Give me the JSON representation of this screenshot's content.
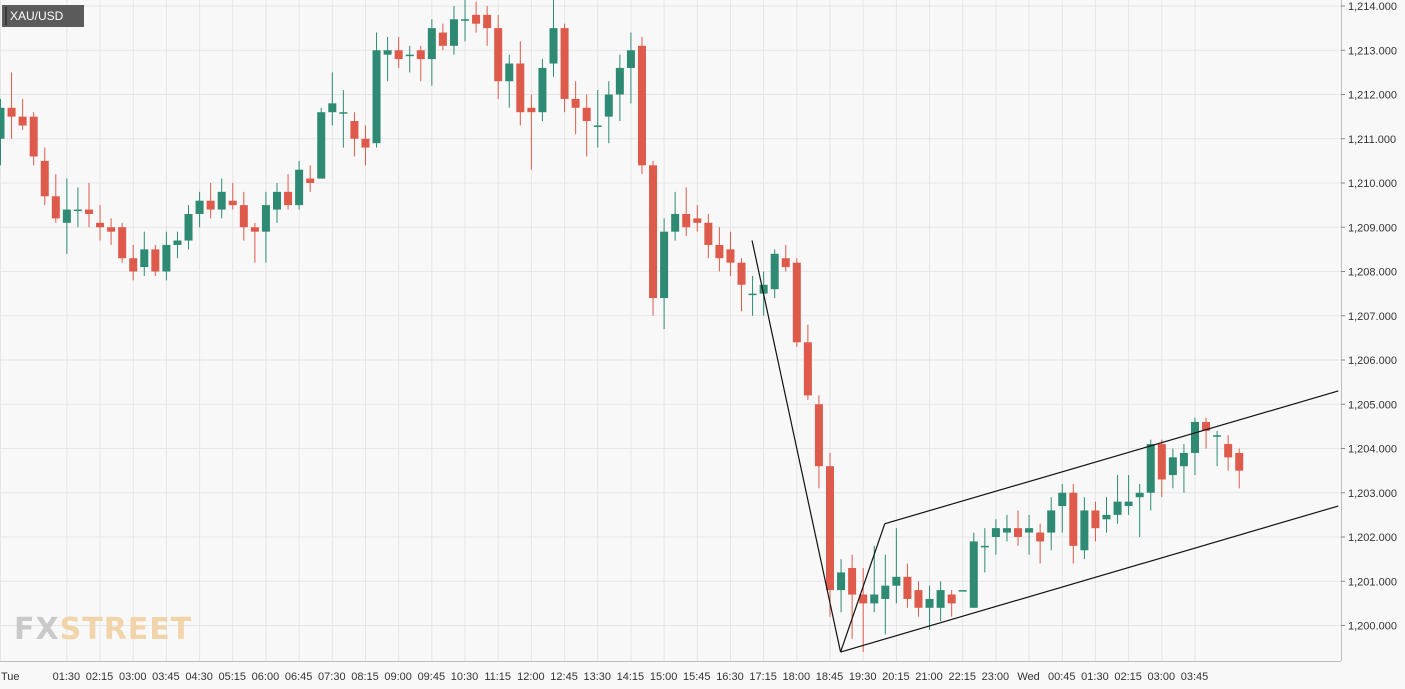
{
  "symbol": "XAU/USD",
  "logo": {
    "part1": "FX",
    "part2": "STREET"
  },
  "colors": {
    "up": "#2e8a73",
    "down": "#de5a4b",
    "grid": "#e6e6e6",
    "axis_text": "#333333",
    "trendline": "#111111"
  },
  "chart_data": {
    "type": "candlestick",
    "title": "",
    "xlabel": "",
    "ylabel": "",
    "ylim": [
      1199.3,
      1214.2
    ],
    "yticks": [
      1200,
      1201,
      1202,
      1203,
      1204,
      1205,
      1206,
      1207,
      1208,
      1209,
      1210,
      1211,
      1212,
      1213,
      1214
    ],
    "ytick_labels": [
      "1,200.000",
      "1,201.000",
      "1,202.000",
      "1,203.000",
      "1,204.000",
      "1,205.000",
      "1,206.000",
      "1,207.000",
      "1,208.000",
      "1,209.000",
      "1,210.000",
      "1,211.000",
      "1,212.000",
      "1,213.000",
      "1,214.000"
    ],
    "xticks": [
      {
        "label": "Tue",
        "i": 0
      },
      {
        "label": "01:30",
        "i": 6
      },
      {
        "label": "02:15",
        "i": 9
      },
      {
        "label": "03:00",
        "i": 12
      },
      {
        "label": "03:45",
        "i": 15
      },
      {
        "label": "04:30",
        "i": 18
      },
      {
        "label": "05:15",
        "i": 21
      },
      {
        "label": "06:00",
        "i": 24
      },
      {
        "label": "06:45",
        "i": 27
      },
      {
        "label": "07:30",
        "i": 30
      },
      {
        "label": "08:15",
        "i": 33
      },
      {
        "label": "09:00",
        "i": 36
      },
      {
        "label": "09:45",
        "i": 39
      },
      {
        "label": "10:30",
        "i": 42
      },
      {
        "label": "11:15",
        "i": 45
      },
      {
        "label": "12:00",
        "i": 48
      },
      {
        "label": "12:45",
        "i": 51
      },
      {
        "label": "13:30",
        "i": 54
      },
      {
        "label": "14:15",
        "i": 57
      },
      {
        "label": "15:00",
        "i": 60
      },
      {
        "label": "15:45",
        "i": 63
      },
      {
        "label": "16:30",
        "i": 66
      },
      {
        "label": "17:15",
        "i": 69
      },
      {
        "label": "18:00",
        "i": 72
      },
      {
        "label": "18:45",
        "i": 75
      },
      {
        "label": "19:30",
        "i": 78
      },
      {
        "label": "20:15",
        "i": 81
      },
      {
        "label": "21:00",
        "i": 84
      },
      {
        "label": "22:15",
        "i": 87
      },
      {
        "label": "23:00",
        "i": 90
      },
      {
        "label": "Wed",
        "i": 93
      },
      {
        "label": "00:45",
        "i": 96
      },
      {
        "label": "01:30",
        "i": 99
      },
      {
        "label": "02:15",
        "i": 102
      },
      {
        "label": "03:00",
        "i": 105
      },
      {
        "label": "03:45",
        "i": 108
      }
    ],
    "candles": [
      {
        "o": 1211.0,
        "h": 1211.9,
        "l": 1210.4,
        "c": 1211.7
      },
      {
        "o": 1211.7,
        "h": 1212.5,
        "l": 1211.0,
        "c": 1211.5
      },
      {
        "o": 1211.5,
        "h": 1211.9,
        "l": 1211.2,
        "c": 1211.3
      },
      {
        "o": 1211.5,
        "h": 1211.6,
        "l": 1210.4,
        "c": 1210.6
      },
      {
        "o": 1210.5,
        "h": 1210.8,
        "l": 1209.5,
        "c": 1209.7
      },
      {
        "o": 1209.7,
        "h": 1210.2,
        "l": 1209.1,
        "c": 1209.2
      },
      {
        "o": 1209.1,
        "h": 1210.1,
        "l": 1208.4,
        "c": 1209.4
      },
      {
        "o": 1209.4,
        "h": 1209.9,
        "l": 1209.0,
        "c": 1209.4
      },
      {
        "o": 1209.4,
        "h": 1210.0,
        "l": 1209.0,
        "c": 1209.3
      },
      {
        "o": 1209.1,
        "h": 1209.5,
        "l": 1208.7,
        "c": 1209.0
      },
      {
        "o": 1209.0,
        "h": 1209.2,
        "l": 1208.6,
        "c": 1208.9
      },
      {
        "o": 1209.0,
        "h": 1209.1,
        "l": 1208.2,
        "c": 1208.3
      },
      {
        "o": 1208.3,
        "h": 1208.6,
        "l": 1207.8,
        "c": 1208.0
      },
      {
        "o": 1208.1,
        "h": 1208.9,
        "l": 1207.9,
        "c": 1208.5
      },
      {
        "o": 1208.5,
        "h": 1208.6,
        "l": 1207.9,
        "c": 1208.0
      },
      {
        "o": 1208.0,
        "h": 1208.9,
        "l": 1207.8,
        "c": 1208.6
      },
      {
        "o": 1208.6,
        "h": 1208.9,
        "l": 1208.3,
        "c": 1208.7
      },
      {
        "o": 1208.7,
        "h": 1209.5,
        "l": 1208.5,
        "c": 1209.3
      },
      {
        "o": 1209.3,
        "h": 1209.8,
        "l": 1209.0,
        "c": 1209.6
      },
      {
        "o": 1209.6,
        "h": 1210.0,
        "l": 1209.2,
        "c": 1209.4
      },
      {
        "o": 1209.4,
        "h": 1210.1,
        "l": 1209.2,
        "c": 1209.8
      },
      {
        "o": 1209.6,
        "h": 1210.0,
        "l": 1209.4,
        "c": 1209.5
      },
      {
        "o": 1209.5,
        "h": 1209.8,
        "l": 1208.7,
        "c": 1209.0
      },
      {
        "o": 1209.0,
        "h": 1209.1,
        "l": 1208.2,
        "c": 1208.9
      },
      {
        "o": 1208.9,
        "h": 1209.8,
        "l": 1208.2,
        "c": 1209.5
      },
      {
        "o": 1209.4,
        "h": 1210.0,
        "l": 1209.1,
        "c": 1209.8
      },
      {
        "o": 1209.8,
        "h": 1210.2,
        "l": 1209.4,
        "c": 1209.5
      },
      {
        "o": 1209.5,
        "h": 1210.5,
        "l": 1209.4,
        "c": 1210.3
      },
      {
        "o": 1210.1,
        "h": 1210.4,
        "l": 1209.8,
        "c": 1210.0
      },
      {
        "o": 1210.1,
        "h": 1211.7,
        "l": 1210.1,
        "c": 1211.6
      },
      {
        "o": 1211.6,
        "h": 1212.5,
        "l": 1211.3,
        "c": 1211.8
      },
      {
        "o": 1211.6,
        "h": 1212.1,
        "l": 1210.8,
        "c": 1211.6
      },
      {
        "o": 1211.4,
        "h": 1211.6,
        "l": 1210.6,
        "c": 1211.0
      },
      {
        "o": 1211.0,
        "h": 1211.3,
        "l": 1210.4,
        "c": 1210.8
      },
      {
        "o": 1210.9,
        "h": 1213.4,
        "l": 1210.8,
        "c": 1213.0
      },
      {
        "o": 1212.9,
        "h": 1213.3,
        "l": 1212.3,
        "c": 1213.0
      },
      {
        "o": 1213.0,
        "h": 1213.3,
        "l": 1212.6,
        "c": 1212.8
      },
      {
        "o": 1212.9,
        "h": 1213.1,
        "l": 1212.5,
        "c": 1212.9
      },
      {
        "o": 1213.0,
        "h": 1213.1,
        "l": 1212.3,
        "c": 1212.8
      },
      {
        "o": 1212.8,
        "h": 1213.7,
        "l": 1212.2,
        "c": 1213.5
      },
      {
        "o": 1213.4,
        "h": 1213.6,
        "l": 1213.0,
        "c": 1213.1
      },
      {
        "o": 1213.1,
        "h": 1214.0,
        "l": 1212.9,
        "c": 1213.7
      },
      {
        "o": 1213.7,
        "h": 1214.2,
        "l": 1213.2,
        "c": 1213.7
      },
      {
        "o": 1213.8,
        "h": 1214.1,
        "l": 1213.4,
        "c": 1213.6
      },
      {
        "o": 1213.8,
        "h": 1214.0,
        "l": 1213.1,
        "c": 1213.5
      },
      {
        "o": 1213.5,
        "h": 1213.8,
        "l": 1211.9,
        "c": 1212.3
      },
      {
        "o": 1212.3,
        "h": 1212.9,
        "l": 1211.7,
        "c": 1212.7
      },
      {
        "o": 1212.7,
        "h": 1213.2,
        "l": 1211.3,
        "c": 1211.6
      },
      {
        "o": 1211.7,
        "h": 1212.0,
        "l": 1210.3,
        "c": 1211.6
      },
      {
        "o": 1211.6,
        "h": 1212.8,
        "l": 1211.4,
        "c": 1212.6
      },
      {
        "o": 1212.7,
        "h": 1214.2,
        "l": 1212.4,
        "c": 1213.5
      },
      {
        "o": 1213.5,
        "h": 1213.6,
        "l": 1211.6,
        "c": 1211.9
      },
      {
        "o": 1211.9,
        "h": 1212.3,
        "l": 1211.1,
        "c": 1211.7
      },
      {
        "o": 1211.7,
        "h": 1212.0,
        "l": 1210.6,
        "c": 1211.4
      },
      {
        "o": 1211.3,
        "h": 1212.1,
        "l": 1210.8,
        "c": 1211.3
      },
      {
        "o": 1211.5,
        "h": 1212.3,
        "l": 1210.9,
        "c": 1212.0
      },
      {
        "o": 1212.0,
        "h": 1212.9,
        "l": 1211.4,
        "c": 1212.6
      },
      {
        "o": 1212.6,
        "h": 1213.4,
        "l": 1211.8,
        "c": 1213.0
      },
      {
        "o": 1213.1,
        "h": 1213.3,
        "l": 1210.2,
        "c": 1210.4
      },
      {
        "o": 1210.4,
        "h": 1210.5,
        "l": 1207.0,
        "c": 1207.4
      },
      {
        "o": 1207.4,
        "h": 1209.2,
        "l": 1206.7,
        "c": 1208.9
      },
      {
        "o": 1208.9,
        "h": 1209.8,
        "l": 1208.7,
        "c": 1209.3
      },
      {
        "o": 1209.3,
        "h": 1209.9,
        "l": 1208.8,
        "c": 1209.0
      },
      {
        "o": 1209.2,
        "h": 1209.5,
        "l": 1208.9,
        "c": 1209.1
      },
      {
        "o": 1209.1,
        "h": 1209.3,
        "l": 1208.3,
        "c": 1208.6
      },
      {
        "o": 1208.6,
        "h": 1209.0,
        "l": 1208.0,
        "c": 1208.3
      },
      {
        "o": 1208.5,
        "h": 1208.9,
        "l": 1207.9,
        "c": 1208.2
      },
      {
        "o": 1208.2,
        "h": 1208.3,
        "l": 1207.1,
        "c": 1207.7
      },
      {
        "o": 1207.5,
        "h": 1207.9,
        "l": 1207.0,
        "c": 1207.5
      },
      {
        "o": 1207.5,
        "h": 1208.0,
        "l": 1207.0,
        "c": 1207.7
      },
      {
        "o": 1207.6,
        "h": 1208.5,
        "l": 1207.4,
        "c": 1208.4
      },
      {
        "o": 1208.3,
        "h": 1208.6,
        "l": 1208.0,
        "c": 1208.1
      },
      {
        "o": 1208.2,
        "h": 1208.3,
        "l": 1206.3,
        "c": 1206.4
      },
      {
        "o": 1206.4,
        "h": 1206.8,
        "l": 1205.1,
        "c": 1205.2
      },
      {
        "o": 1205.0,
        "h": 1205.2,
        "l": 1203.1,
        "c": 1203.6
      },
      {
        "o": 1203.6,
        "h": 1203.9,
        "l": 1200.2,
        "c": 1200.8
      },
      {
        "o": 1200.8,
        "h": 1201.5,
        "l": 1200.3,
        "c": 1201.2
      },
      {
        "o": 1201.3,
        "h": 1201.6,
        "l": 1199.7,
        "c": 1200.7
      },
      {
        "o": 1200.7,
        "h": 1201.3,
        "l": 1199.4,
        "c": 1200.5
      },
      {
        "o": 1200.5,
        "h": 1201.8,
        "l": 1200.3,
        "c": 1200.7
      },
      {
        "o": 1200.6,
        "h": 1201.6,
        "l": 1199.8,
        "c": 1200.9
      },
      {
        "o": 1200.9,
        "h": 1202.2,
        "l": 1200.5,
        "c": 1201.1
      },
      {
        "o": 1201.1,
        "h": 1201.4,
        "l": 1200.4,
        "c": 1200.6
      },
      {
        "o": 1200.8,
        "h": 1201.0,
        "l": 1200.2,
        "c": 1200.4
      },
      {
        "o": 1200.4,
        "h": 1200.9,
        "l": 1199.9,
        "c": 1200.6
      },
      {
        "o": 1200.4,
        "h": 1201.0,
        "l": 1200.1,
        "c": 1200.8
      },
      {
        "o": 1200.7,
        "h": 1200.8,
        "l": 1200.2,
        "c": 1200.5
      },
      {
        "o": 1200.8,
        "h": 1200.8,
        "l": 1200.8,
        "c": 1200.8
      },
      {
        "o": 1200.4,
        "h": 1202.1,
        "l": 1200.4,
        "c": 1201.9
      },
      {
        "o": 1201.8,
        "h": 1202.2,
        "l": 1201.2,
        "c": 1201.8
      },
      {
        "o": 1202.0,
        "h": 1202.4,
        "l": 1201.6,
        "c": 1202.2
      },
      {
        "o": 1202.1,
        "h": 1202.5,
        "l": 1201.9,
        "c": 1202.2
      },
      {
        "o": 1202.2,
        "h": 1202.6,
        "l": 1201.8,
        "c": 1202.0
      },
      {
        "o": 1202.1,
        "h": 1202.5,
        "l": 1201.6,
        "c": 1202.2
      },
      {
        "o": 1202.1,
        "h": 1202.3,
        "l": 1201.4,
        "c": 1201.9
      },
      {
        "o": 1202.1,
        "h": 1202.9,
        "l": 1201.7,
        "c": 1202.6
      },
      {
        "o": 1202.7,
        "h": 1203.2,
        "l": 1202.1,
        "c": 1203.0
      },
      {
        "o": 1203.0,
        "h": 1203.2,
        "l": 1201.4,
        "c": 1201.8
      },
      {
        "o": 1201.7,
        "h": 1202.9,
        "l": 1201.5,
        "c": 1202.6
      },
      {
        "o": 1202.6,
        "h": 1202.8,
        "l": 1201.9,
        "c": 1202.2
      },
      {
        "o": 1202.4,
        "h": 1202.9,
        "l": 1202.1,
        "c": 1202.5
      },
      {
        "o": 1202.5,
        "h": 1203.4,
        "l": 1202.3,
        "c": 1202.8
      },
      {
        "o": 1202.7,
        "h": 1203.4,
        "l": 1202.5,
        "c": 1202.8
      },
      {
        "o": 1202.9,
        "h": 1203.2,
        "l": 1202.0,
        "c": 1203.0
      },
      {
        "o": 1203.0,
        "h": 1204.2,
        "l": 1202.6,
        "c": 1204.1
      },
      {
        "o": 1204.1,
        "h": 1204.2,
        "l": 1202.9,
        "c": 1203.3
      },
      {
        "o": 1203.4,
        "h": 1204.0,
        "l": 1203.1,
        "c": 1203.8
      },
      {
        "o": 1203.6,
        "h": 1204.1,
        "l": 1203.0,
        "c": 1203.9
      },
      {
        "o": 1203.9,
        "h": 1204.7,
        "l": 1203.4,
        "c": 1204.6
      },
      {
        "o": 1204.6,
        "h": 1204.7,
        "l": 1204.0,
        "c": 1204.4
      },
      {
        "o": 1204.3,
        "h": 1204.4,
        "l": 1203.6,
        "c": 1204.3
      },
      {
        "o": 1204.1,
        "h": 1204.3,
        "l": 1203.5,
        "c": 1203.8
      },
      {
        "o": 1203.9,
        "h": 1204.0,
        "l": 1203.1,
        "c": 1203.5
      }
    ],
    "trendlines": [
      {
        "name": "decline-line",
        "from": {
          "i": 68,
          "p": 1208.7
        },
        "to": {
          "i": 76,
          "p": 1199.4
        }
      },
      {
        "name": "channel-base",
        "from": {
          "i": 76,
          "p": 1199.4
        },
        "to": {
          "i": 80,
          "p": 1202.3
        }
      },
      {
        "name": "channel-upper",
        "from": {
          "i": 80,
          "p": 1202.3
        },
        "to": {
          "i": 121,
          "p": 1205.3
        }
      },
      {
        "name": "channel-lower",
        "from": {
          "i": 76,
          "p": 1199.4
        },
        "to": {
          "i": 121,
          "p": 1202.7
        }
      }
    ]
  }
}
